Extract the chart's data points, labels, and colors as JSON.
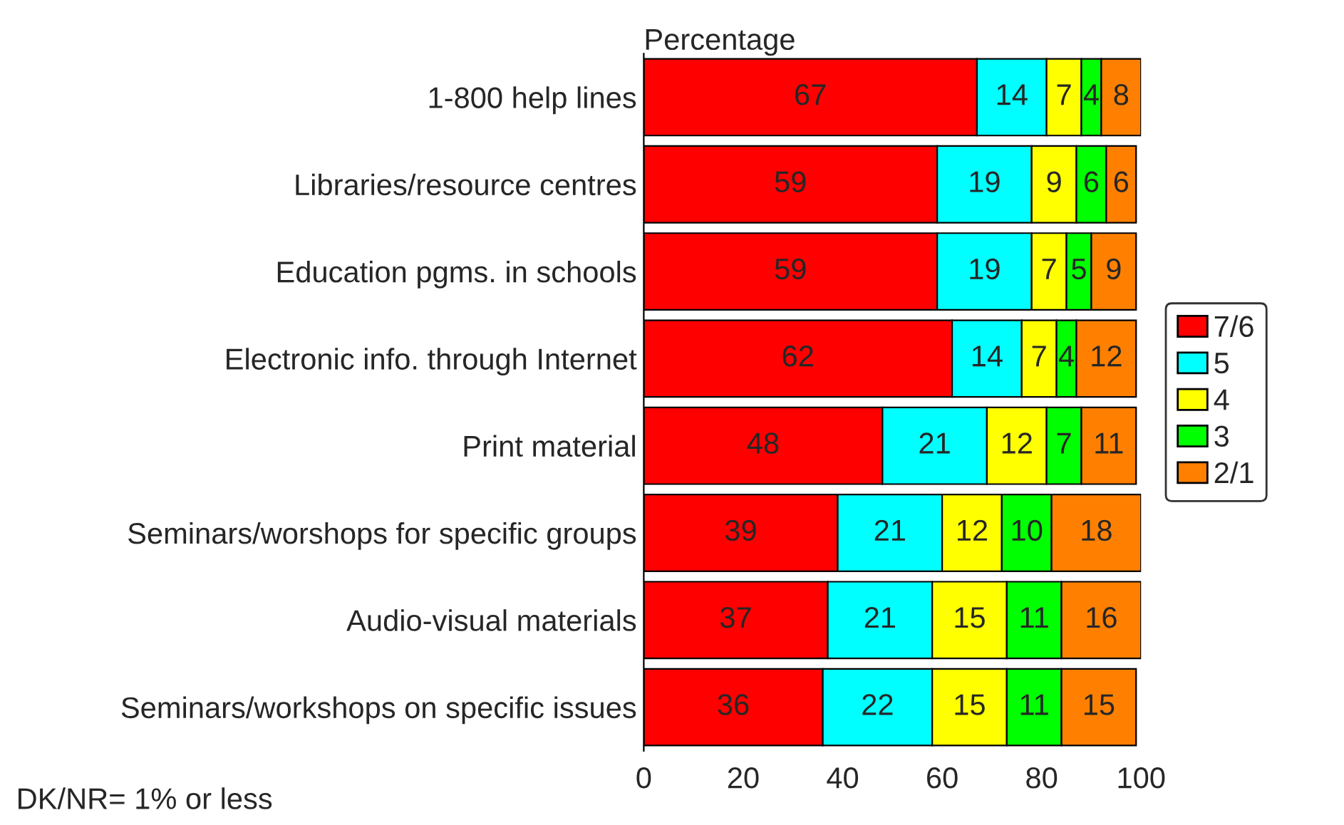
{
  "chart_data": {
    "type": "bar",
    "orientation": "horizontal",
    "stacked": true,
    "title": "Percentage",
    "categories": [
      "1-800 help lines",
      "Libraries/resource centres",
      "Education pgms. in schools",
      "Electronic info. through Internet",
      "Print material",
      "Seminars/worshops for specific groups",
      "Audio-visual materials",
      "Seminars/workshops on specific issues"
    ],
    "series": [
      {
        "name": "7/6",
        "color": "#ff0000",
        "values": [
          67,
          59,
          59,
          62,
          48,
          39,
          37,
          36
        ]
      },
      {
        "name": "5",
        "color": "#00ffff",
        "values": [
          14,
          19,
          19,
          14,
          21,
          21,
          21,
          22
        ]
      },
      {
        "name": "4",
        "color": "#ffff00",
        "values": [
          7,
          9,
          7,
          7,
          12,
          12,
          15,
          15
        ]
      },
      {
        "name": "3",
        "color": "#00ff00",
        "values": [
          4,
          6,
          5,
          4,
          7,
          10,
          11,
          11
        ]
      },
      {
        "name": "2/1",
        "color": "#ff8000",
        "values": [
          8,
          6,
          9,
          12,
          11,
          18,
          16,
          15
        ]
      }
    ],
    "xlim": [
      0,
      100
    ],
    "xticks": [
      0,
      20,
      40,
      60,
      80,
      100
    ],
    "data_labels": true,
    "legend": "right",
    "grid": false,
    "annotations": [
      "DK/NR= 1% or less"
    ]
  }
}
